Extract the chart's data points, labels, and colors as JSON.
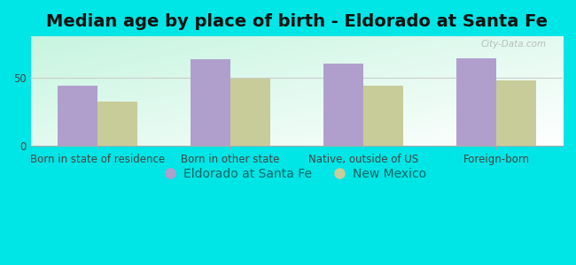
{
  "title": "Median age by place of birth - Eldorado at Santa Fe",
  "categories": [
    "Born in state of residence",
    "Born in other state",
    "Native, outside of US",
    "Foreign-born"
  ],
  "eldorado_values": [
    44,
    63,
    60,
    64
  ],
  "newmexico_values": [
    32,
    49,
    44,
    48
  ],
  "eldorado_color": "#b09fcc",
  "newmexico_color": "#c8cc99",
  "bar_width": 0.3,
  "ylim": [
    0,
    80
  ],
  "yticks": [
    0,
    50
  ],
  "background_outer": "#00e5e5",
  "legend_label_eldorado": "Eldorado at Santa Fe",
  "legend_label_newmexico": "New Mexico",
  "legend_text_color": "#006666",
  "title_fontsize": 14,
  "axis_tick_fontsize": 8.5,
  "legend_fontsize": 10,
  "watermark": "City-Data.com"
}
